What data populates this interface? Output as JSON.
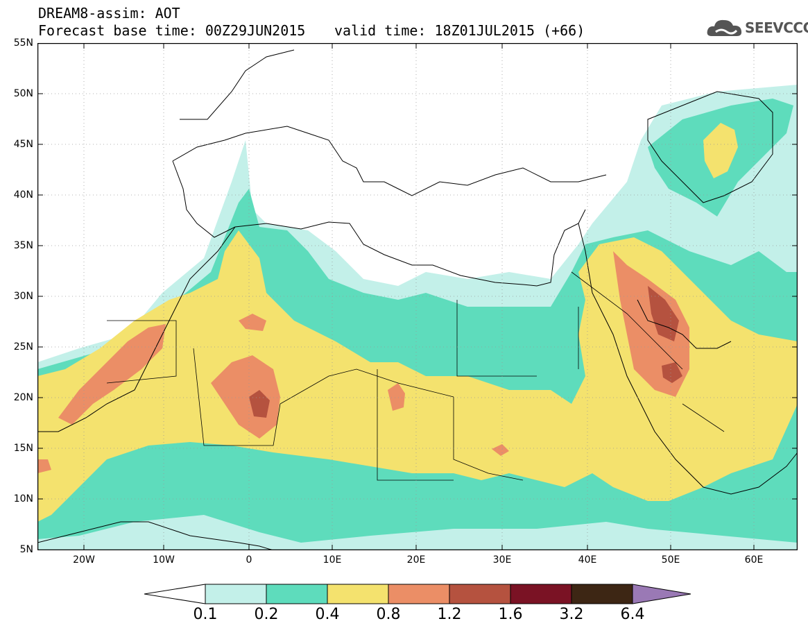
{
  "header": {
    "line1": "DREAM8-assim: AOT",
    "line2": "Forecast base time: 00Z29JUN2015",
    "line3": "valid time: 18Z01JUL2015 (+66)"
  },
  "logo": {
    "text": "SEEVCCC",
    "icon": "cloud-logo-icon"
  },
  "map": {
    "lat_labels": [
      "55N",
      "50N",
      "45N",
      "40N",
      "35N",
      "30N",
      "25N",
      "20N",
      "15N",
      "10N",
      "5N"
    ],
    "lon_labels": [
      "20W",
      "10W",
      "0",
      "10E",
      "20E",
      "30E",
      "40E",
      "50E",
      "60E"
    ],
    "colors": {
      "c01": "#c3f0e9",
      "c02": "#5edcbc",
      "c04": "#f4e26e",
      "c08": "#eb8e66",
      "c12": "#b5523f",
      "c16": "#7a1224",
      "c32": "#3d2614",
      "c64": "#9a79b5"
    }
  },
  "colorbar": {
    "labels": [
      "0.1",
      "0.2",
      "0.4",
      "0.8",
      "1.2",
      "1.6",
      "3.2",
      "6.4"
    ],
    "colors": [
      "#ffffff",
      "#c3f0e9",
      "#5edcbc",
      "#f4e26e",
      "#eb8e66",
      "#b5523f",
      "#7a1224",
      "#3d2614",
      "#9a79b5"
    ]
  }
}
